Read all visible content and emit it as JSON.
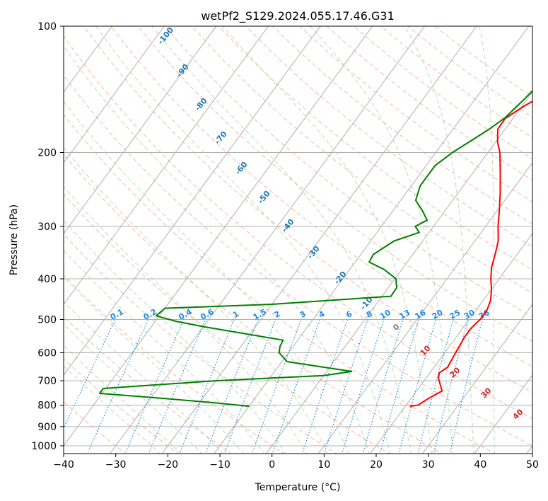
{
  "chart_data": {
    "type": "line",
    "title": "wetPf2_S129.2024.055.17.46.G31",
    "xlabel": "Temperature (°C)",
    "ylabel": "Pressure (hPa)",
    "xlim": [
      -40,
      50
    ],
    "ylim": [
      1050,
      100
    ],
    "y_scale": "log",
    "x_ticks": [
      -40,
      -30,
      -20,
      -10,
      0,
      10,
      20,
      30,
      40,
      50
    ],
    "y_ticks": [
      100,
      200,
      300,
      400,
      500,
      600,
      700,
      800,
      900,
      1000
    ],
    "grid": true,
    "skew": "skew-T log-p diagram",
    "series": [
      {
        "color": "#ff0000",
        "points": [
          {
            "p": 100,
            "t": 8
          },
          {
            "p": 108,
            "t": 5.5
          },
          {
            "p": 116,
            "t": 4.9
          },
          {
            "p": 125,
            "t": 5.7
          },
          {
            "p": 137,
            "t": 4.6
          },
          {
            "p": 146,
            "t": 2.5
          },
          {
            "p": 155,
            "t": 0.4
          },
          {
            "p": 166,
            "t": -1.5
          },
          {
            "p": 176,
            "t": -1.4
          },
          {
            "p": 189,
            "t": 0.4
          },
          {
            "p": 200,
            "t": 2.3
          },
          {
            "p": 225,
            "t": 5.4
          },
          {
            "p": 250,
            "t": 8.1
          },
          {
            "p": 275,
            "t": 10.4
          },
          {
            "p": 300,
            "t": 12.4
          },
          {
            "p": 325,
            "t": 14.5
          },
          {
            "p": 350,
            "t": 15.8
          },
          {
            "p": 375,
            "t": 16.9
          },
          {
            "p": 400,
            "t": 18.4
          },
          {
            "p": 425,
            "t": 20.1
          },
          {
            "p": 450,
            "t": 21.4
          },
          {
            "p": 475,
            "t": 22.1
          },
          {
            "p": 500,
            "t": 22.1
          },
          {
            "p": 525,
            "t": 21.6
          },
          {
            "p": 550,
            "t": 21.6
          },
          {
            "p": 600,
            "t": 22.1
          },
          {
            "p": 650,
            "t": 22.6
          },
          {
            "p": 670,
            "t": 21.8
          },
          {
            "p": 690,
            "t": 22.4
          },
          {
            "p": 720,
            "t": 23.9
          },
          {
            "p": 740,
            "t": 24.9
          },
          {
            "p": 770,
            "t": 23.4
          },
          {
            "p": 800,
            "t": 22.3
          },
          {
            "p": 805,
            "t": 20.9
          }
        ]
      },
      {
        "color": "#008000",
        "points": [
          {
            "p": 100,
            "t": -0.3
          },
          {
            "p": 115,
            "t": -0.7
          },
          {
            "p": 130,
            "t": -1.0
          },
          {
            "p": 140,
            "t": 0
          },
          {
            "p": 150,
            "t": -0.6
          },
          {
            "p": 165,
            "t": -1.6
          },
          {
            "p": 175,
            "t": -2.9
          },
          {
            "p": 185,
            "t": -4.5
          },
          {
            "p": 200,
            "t": -6.8
          },
          {
            "p": 215,
            "t": -8.3
          },
          {
            "p": 240,
            "t": -8.3
          },
          {
            "p": 260,
            "t": -7.1
          },
          {
            "p": 275,
            "t": -4.4
          },
          {
            "p": 290,
            "t": -2.1
          },
          {
            "p": 300,
            "t": -3.5
          },
          {
            "p": 310,
            "t": -1.9
          },
          {
            "p": 325,
            "t": -5.5
          },
          {
            "p": 350,
            "t": -7.6
          },
          {
            "p": 365,
            "t": -7.3
          },
          {
            "p": 380,
            "t": -3.4
          },
          {
            "p": 400,
            "t": 0.2
          },
          {
            "p": 420,
            "t": 1.6
          },
          {
            "p": 440,
            "t": 1.7
          },
          {
            "p": 460,
            "t": -20
          },
          {
            "p": 470,
            "t": -40
          },
          {
            "p": 490,
            "t": -40.6
          },
          {
            "p": 505,
            "t": -36
          },
          {
            "p": 520,
            "t": -30
          },
          {
            "p": 560,
            "t": -12.8
          },
          {
            "p": 580,
            "t": -12.5
          },
          {
            "p": 600,
            "t": -11.8
          },
          {
            "p": 630,
            "t": -9
          },
          {
            "p": 650,
            "t": -1
          },
          {
            "p": 665,
            "t": 4.8
          },
          {
            "p": 680,
            "t": 0
          },
          {
            "p": 700,
            "t": -20
          },
          {
            "p": 730,
            "t": -40.5
          },
          {
            "p": 750,
            "t": -40.5
          },
          {
            "p": 770,
            "t": -28
          },
          {
            "p": 790,
            "t": -17
          },
          {
            "p": 805,
            "t": -10
          }
        ]
      }
    ],
    "mixing_ratio_labels": [
      "0.1",
      "0.2",
      "0.4",
      "0.6",
      "1",
      "1.5",
      "2",
      "3",
      "4",
      "6",
      "8",
      "10",
      "13",
      "16",
      "20",
      "25",
      "30",
      "36"
    ],
    "moist_adiabat_labels": [
      "-100",
      "-90",
      "-80",
      "-70",
      "-60",
      "-50",
      "-40",
      "-30",
      "-20",
      "-10"
    ],
    "dry_adiabat_labels": [
      "0",
      "10",
      "20",
      "30",
      "40"
    ],
    "colors": {
      "temperature": "#ff0000",
      "dewpoint": "#008000",
      "mixing_ratio": "#1e88e5",
      "moist_label": "#1f77b4",
      "dry_label_0": "#808080",
      "dry_label": "#d62728",
      "dry_adiabat": "#f4a582",
      "moist_adiabat": "#a8d5a2",
      "isotherm": "#b0b0b0"
    }
  }
}
